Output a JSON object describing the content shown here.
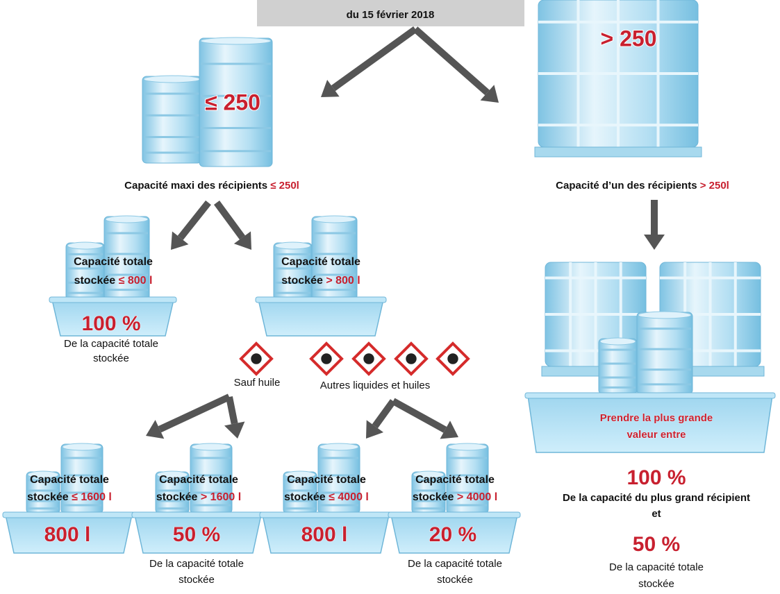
{
  "header": {
    "date": "du 15 février 2018"
  },
  "branches": {
    "small": {
      "badge": "≤ 250",
      "label": "Capacité maxi des récipients",
      "limit": "≤ 250l"
    },
    "large": {
      "badge": "> 250",
      "label": "Capacité d’un des récipients",
      "limit": "> 250l"
    }
  },
  "level2": [
    {
      "line1": "Capacité totale",
      "line2": "stockée",
      "limit": "≤ 800 l",
      "result": "100 %",
      "note": [
        "De la capacité totale",
        "stockée"
      ]
    },
    {
      "line1": "Capacité totale",
      "line2": "stockée",
      "limit": "> 800 l"
    }
  ],
  "pictogram_groups": [
    {
      "label": "Sauf huile"
    },
    {
      "label": "Autres liquides et huiles"
    }
  ],
  "level3": [
    {
      "line1": "Capacité totale",
      "line2": "stockée",
      "limit": "≤ 1600 l",
      "result": "800 l"
    },
    {
      "line1": "Capacité totale",
      "line2": "stockée",
      "limit": "> 1600 l",
      "result": "50 %",
      "note": [
        "De la capacité totale",
        "stockée"
      ]
    },
    {
      "line1": "Capacité totale",
      "line2": "stockée",
      "limit": "≤ 4000 l",
      "result": "800 l"
    },
    {
      "line1": "Capacité totale",
      "line2": "stockée",
      "limit": "> 4000 l",
      "result": "20 %",
      "note": [
        "De la capacité totale",
        "stockée"
      ]
    }
  ],
  "large_result": {
    "instruction": [
      "Prendre la plus grande",
      "valeur entre"
    ],
    "first": "100 %",
    "first_note": "De la capacité du plus grand récipient",
    "joiner": "et",
    "second": "50 %",
    "second_note": [
      "De la capacité totale",
      "stockée"
    ]
  }
}
